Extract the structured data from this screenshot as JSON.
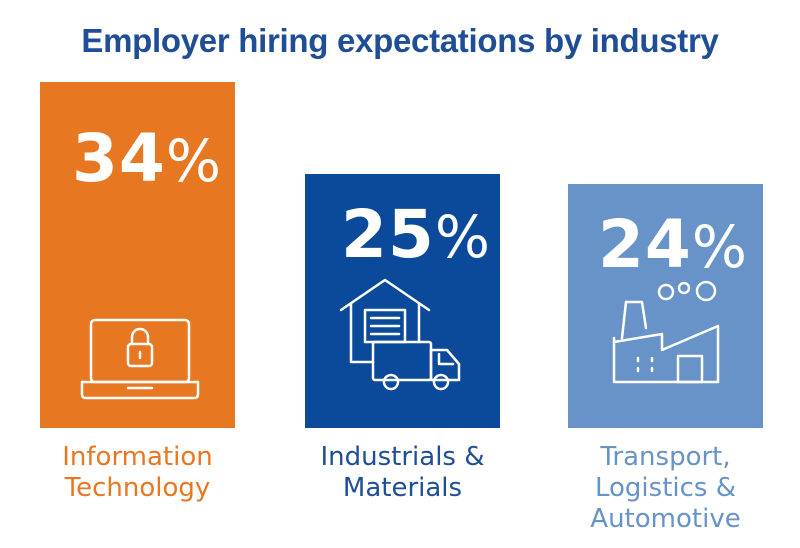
{
  "chart_data": {
    "type": "bar",
    "title": "Employer hiring expectations by industry",
    "categories": [
      "Information\nTechnology",
      "Industrials &\nMaterials",
      "Transport,\nLogistics &\nAutomotive"
    ],
    "values": [
      34,
      25,
      24
    ],
    "value_suffix": "%",
    "colors": [
      "#e87722",
      "#0b4a9b",
      "#6793c9"
    ],
    "label_colors": [
      "#e87722",
      "#1f4e96",
      "#6793c9"
    ],
    "icons": [
      "laptop-lock-icon",
      "warehouse-truck-icon",
      "factory-icon"
    ],
    "ylim": [
      0,
      34
    ],
    "grid": false,
    "legend": "none"
  }
}
